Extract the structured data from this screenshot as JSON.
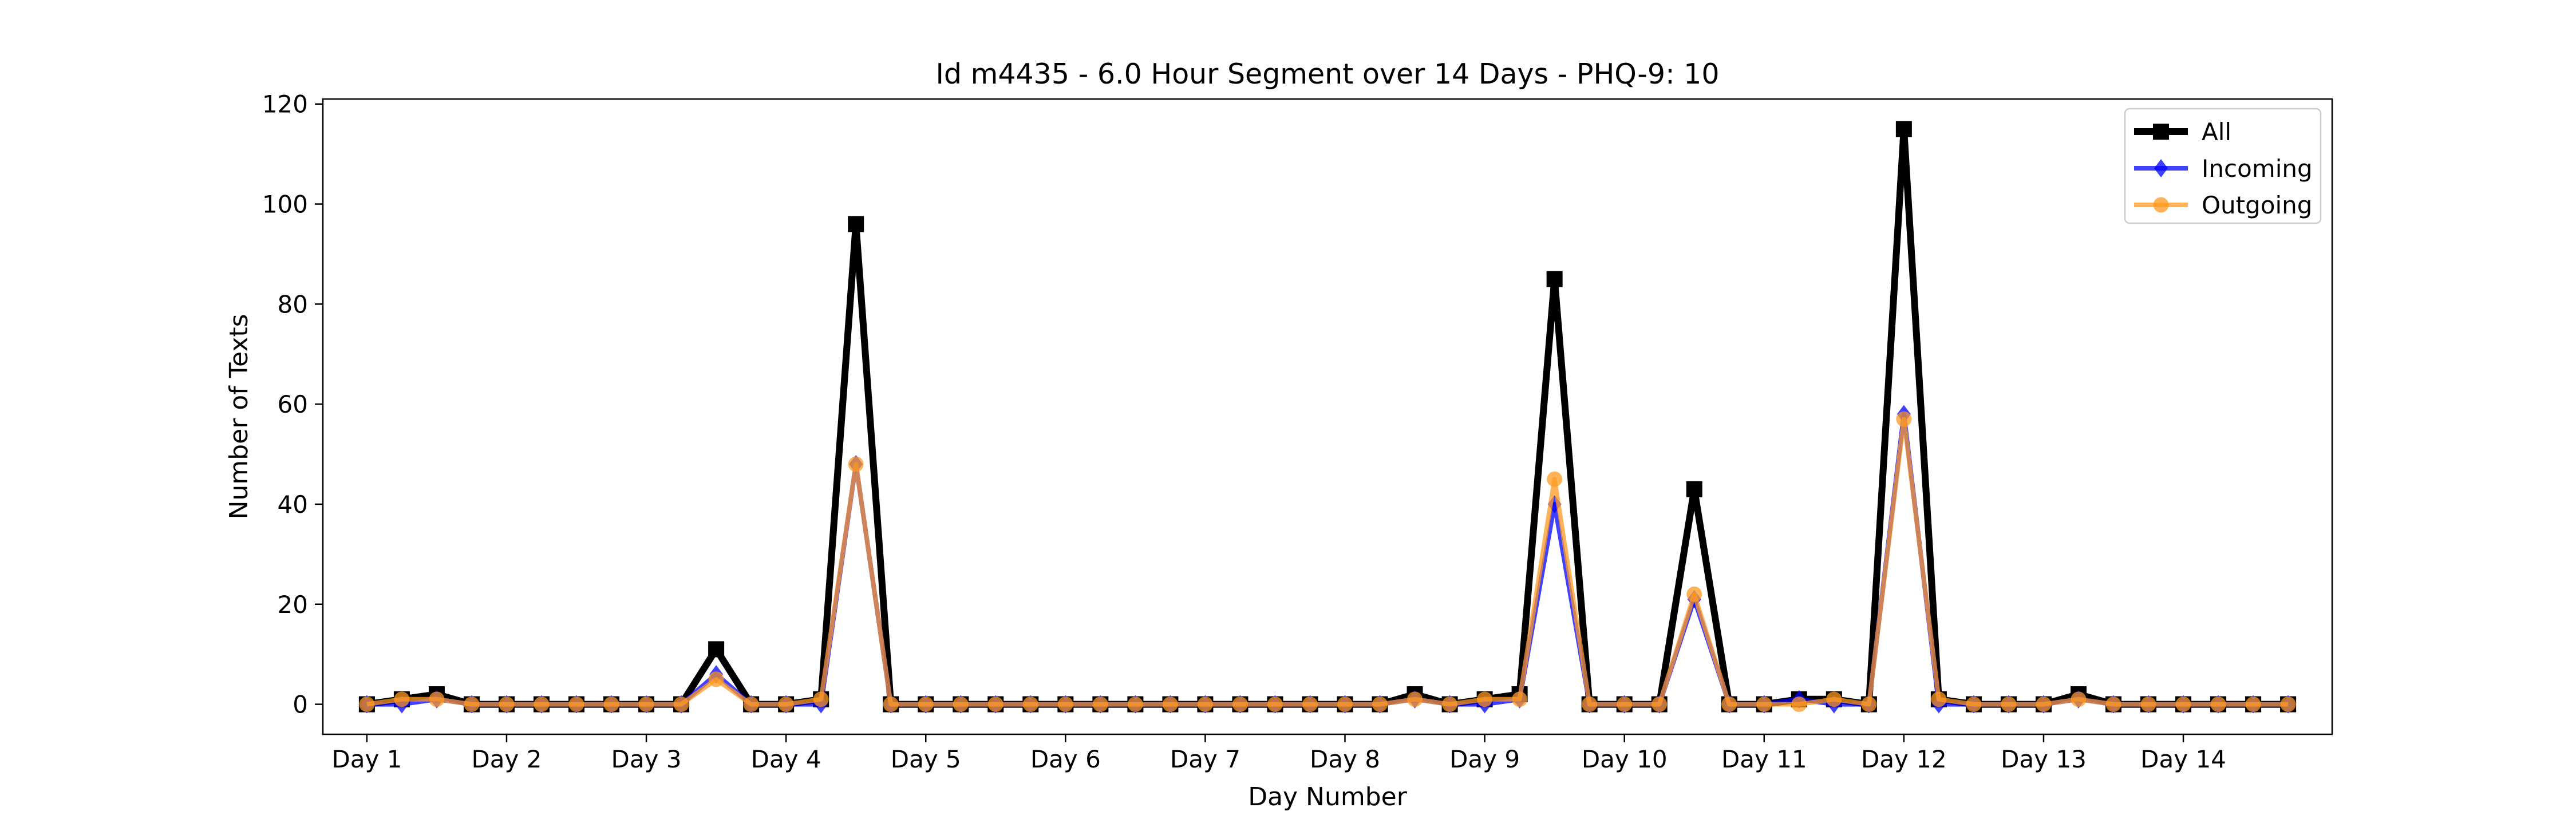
{
  "chart_data": {
    "type": "line",
    "title": "Id m4435 - 6.0 Hour Segment over 14 Days - PHQ-9: 10",
    "xlabel": "Day Number",
    "ylabel": "Number of Texts",
    "ylim": [
      -6,
      121
    ],
    "yticks": [
      0,
      20,
      40,
      60,
      80,
      100,
      120
    ],
    "xticks": [
      {
        "x": 1,
        "label": "Day 1"
      },
      {
        "x": 2,
        "label": "Day 2"
      },
      {
        "x": 3,
        "label": "Day 3"
      },
      {
        "x": 4,
        "label": "Day 4"
      },
      {
        "x": 5,
        "label": "Day 5"
      },
      {
        "x": 6,
        "label": "Day 6"
      },
      {
        "x": 7,
        "label": "Day 7"
      },
      {
        "x": 8,
        "label": "Day 8"
      },
      {
        "x": 9,
        "label": "Day 9"
      },
      {
        "x": 10,
        "label": "Day 10"
      },
      {
        "x": 11,
        "label": "Day 11"
      },
      {
        "x": 12,
        "label": "Day 12"
      },
      {
        "x": 13,
        "label": "Day 13"
      },
      {
        "x": 14,
        "label": "Day 14"
      }
    ],
    "x": [
      1,
      1.25,
      1.5,
      1.75,
      2,
      2.25,
      2.5,
      2.75,
      3,
      3.25,
      3.5,
      3.75,
      4,
      4.25,
      4.5,
      4.75,
      5,
      5.25,
      5.5,
      5.75,
      6,
      6.25,
      6.5,
      6.75,
      7,
      7.25,
      7.5,
      7.75,
      8,
      8.25,
      8.5,
      8.75,
      9,
      9.25,
      9.5,
      9.75,
      10,
      10.25,
      10.5,
      10.75,
      11,
      11.25,
      11.5,
      11.75,
      12,
      12.25,
      12.5,
      12.75,
      13,
      13.25,
      13.5,
      13.75,
      14,
      14.25,
      14.5,
      14.75
    ],
    "legend_location": "upper right",
    "grid": false,
    "series": [
      {
        "name": "All",
        "color": "#000000",
        "marker": "square",
        "values": [
          0,
          1,
          2,
          0,
          0,
          0,
          0,
          0,
          0,
          0,
          11,
          0,
          0,
          1,
          96,
          0,
          0,
          0,
          0,
          0,
          0,
          0,
          0,
          0,
          0,
          0,
          0,
          0,
          0,
          0,
          2,
          0,
          1,
          2,
          85,
          0,
          0,
          0,
          43,
          0,
          0,
          1,
          1,
          0,
          115,
          1,
          0,
          0,
          0,
          2,
          0,
          0,
          0,
          0,
          0,
          0
        ]
      },
      {
        "name": "Incoming",
        "color": "#0000ff",
        "marker": "diamond",
        "values": [
          0,
          0,
          1,
          0,
          0,
          0,
          0,
          0,
          0,
          0,
          6,
          0,
          0,
          0,
          48,
          0,
          0,
          0,
          0,
          0,
          0,
          0,
          0,
          0,
          0,
          0,
          0,
          0,
          0,
          0,
          1,
          0,
          0,
          1,
          40,
          0,
          0,
          0,
          21,
          0,
          0,
          1,
          0,
          0,
          58,
          0,
          0,
          0,
          0,
          1,
          0,
          0,
          0,
          0,
          0,
          0
        ]
      },
      {
        "name": "Outgoing",
        "color": "#ff9922",
        "marker": "circle",
        "values": [
          0,
          1,
          1,
          0,
          0,
          0,
          0,
          0,
          0,
          0,
          5,
          0,
          0,
          1,
          48,
          0,
          0,
          0,
          0,
          0,
          0,
          0,
          0,
          0,
          0,
          0,
          0,
          0,
          0,
          0,
          1,
          0,
          1,
          1,
          45,
          0,
          0,
          0,
          22,
          0,
          0,
          0,
          1,
          0,
          57,
          1,
          0,
          0,
          0,
          1,
          0,
          0,
          0,
          0,
          0,
          0
        ]
      }
    ]
  }
}
